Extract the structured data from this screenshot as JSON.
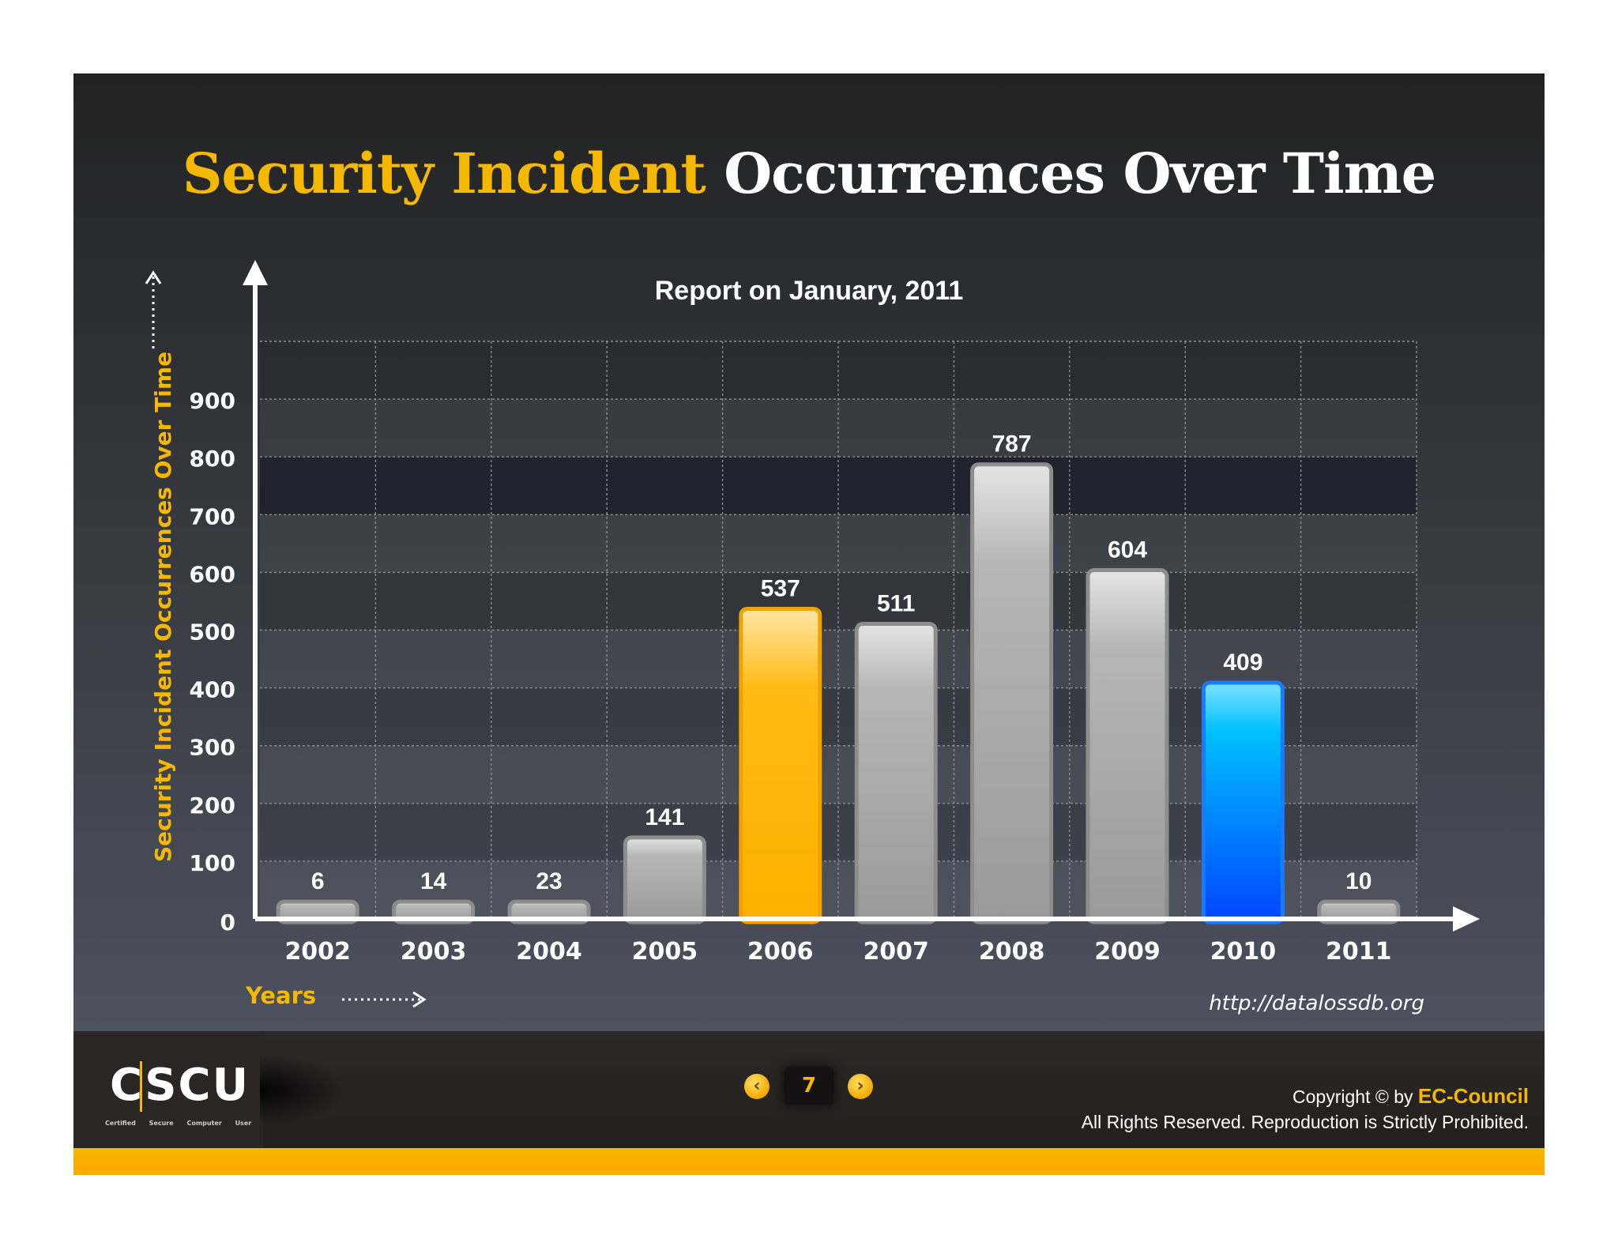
{
  "title_part1": "Security Incident",
  "title_part2": "Occurrences Over Time",
  "subtitle": "Report on January, 2011",
  "source": "http://datalossdb.org",
  "colors": {
    "accent": "#f5b800",
    "highlight_2006": "#fcb400",
    "highlight_2010": "#0a8cff",
    "default_bar": "#a3a3a3"
  },
  "chart_data": {
    "type": "bar",
    "title": "Security Incident Occurrences Over Time",
    "subtitle": "Report on January, 2011",
    "xlabel": "Years",
    "ylabel": "Security Incident Occurrences Over Time",
    "categories": [
      "2002",
      "2003",
      "2004",
      "2005",
      "2006",
      "2007",
      "2008",
      "2009",
      "2010",
      "2011"
    ],
    "values": [
      6,
      14,
      23,
      141,
      537,
      511,
      787,
      604,
      409,
      10
    ],
    "bar_colors": [
      "gray",
      "gray",
      "gray",
      "gray",
      "yellow",
      "gray",
      "gray",
      "gray",
      "blue",
      "gray"
    ],
    "ylim": [
      0,
      1000
    ],
    "yticks": [
      0,
      100,
      200,
      300,
      400,
      500,
      600,
      700,
      800,
      900
    ],
    "grid": true,
    "legend": "none"
  },
  "footer": {
    "logo_text": "CSCU",
    "logo_subtitle": "Certified Secure Computer User",
    "page_number": "7",
    "prev_icon": "‹",
    "next_icon": "›",
    "copyright_prefix": "Copyright © by",
    "copyright_brand": "EC-Council",
    "rights": "All Rights Reserved. Reproduction is Strictly Prohibited."
  }
}
